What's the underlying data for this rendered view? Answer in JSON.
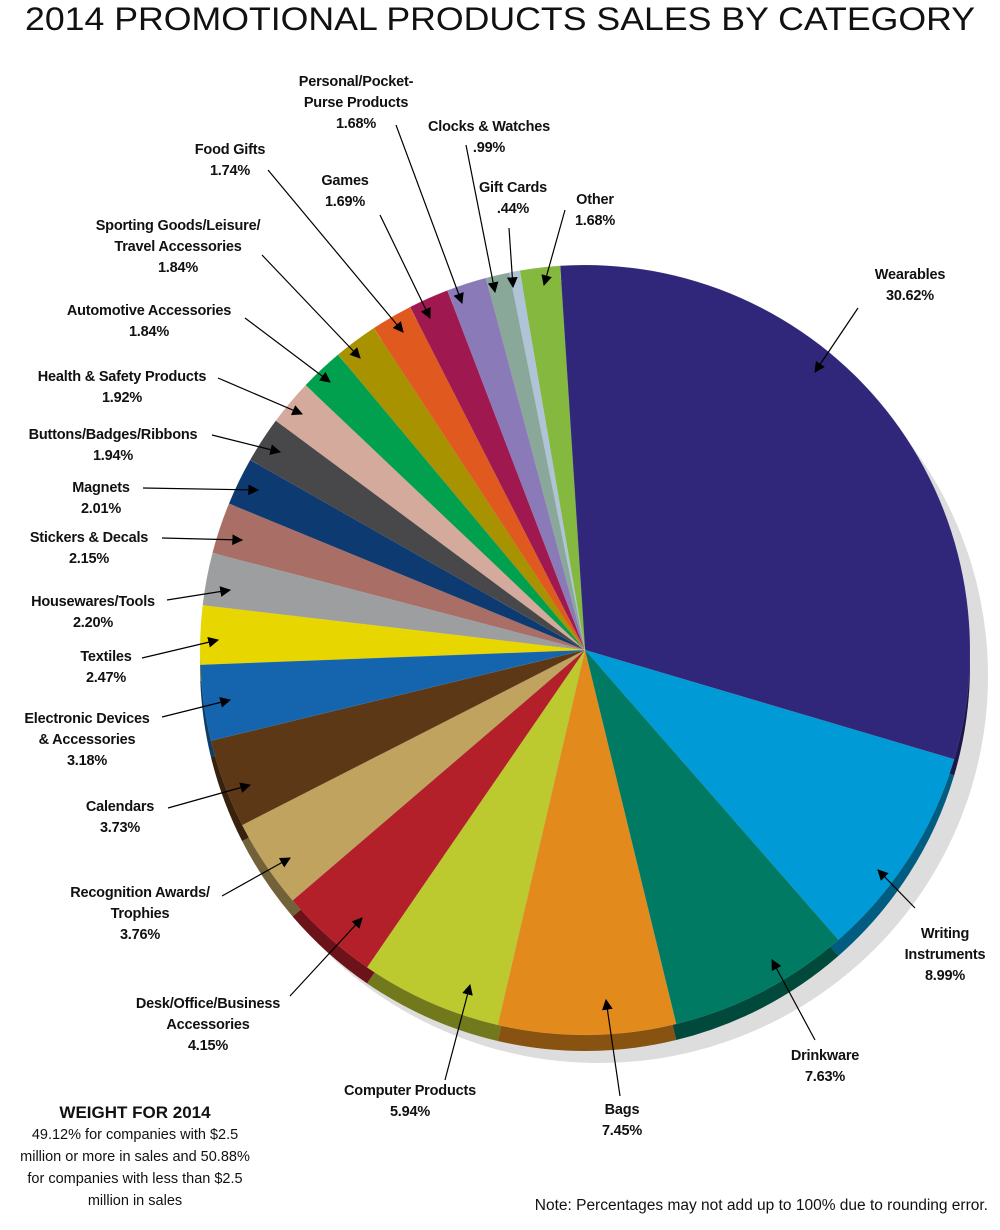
{
  "chart_data": {
    "type": "pie",
    "title": "2014 PROMOTIONAL PRODUCTS SALES BY CATEGORY",
    "categories": [
      "Wearables",
      "Writing\nInstruments",
      "Drinkware",
      "Bags",
      "Computer Products",
      "Desk/Office/Business\nAccessories",
      "Recognition Awards/\nTrophies",
      "Calendars",
      "Electronic Devices\n& Accessories",
      "Textiles",
      "Housewares/Tools",
      "Stickers & Decals",
      "Magnets",
      "Buttons/Badges/Ribbons",
      "Health & Safety Products",
      "Automotive Accessories",
      "Sporting Goods/Leisure/\nTravel Accessories",
      "Food Gifts",
      "Games",
      "Personal/Pocket-\nPurse Products",
      "Clocks & Watches",
      "Gift Cards",
      "Other"
    ],
    "values": [
      30.62,
      8.99,
      7.63,
      7.45,
      5.94,
      4.15,
      3.76,
      3.73,
      3.18,
      2.47,
      2.2,
      2.15,
      2.01,
      1.94,
      1.92,
      1.84,
      1.84,
      1.74,
      1.69,
      1.68,
      0.99,
      0.44,
      1.68
    ],
    "value_labels": [
      "30.62%",
      "8.99%",
      "7.63%",
      "7.45%",
      "5.94%",
      "4.15%",
      "3.76%",
      "3.73%",
      "3.18%",
      "2.47%",
      "2.20%",
      "2.15%",
      "2.01%",
      "1.94%",
      "1.92%",
      "1.84%",
      "1.84%",
      "1.74%",
      "1.69%",
      "1.68%",
      ".99%",
      ".44%",
      "1.68%"
    ],
    "colors": [
      "#30277a",
      "#009ad6",
      "#007a63",
      "#e38a1c",
      "#bcc92f",
      "#b3202a",
      "#bfa35f",
      "#5d3816",
      "#1565ae",
      "#e8d600",
      "#9d9ea0",
      "#a96e65",
      "#0d3a70",
      "#48484a",
      "#d3aa9c",
      "#00a04e",
      "#a89200",
      "#e05a20",
      "#a01850",
      "#8a7bb8",
      "#8aa89a",
      "#b0c4d8",
      "#84b83e"
    ],
    "weight_heading": "WEIGHT FOR 2014",
    "weight_text": "49.12% for companies with $2.5 million or more in sales and 50.88% for companies with less than $2.5 million in sales",
    "note": "Note: Percentages may not add up to 100% due to rounding error."
  }
}
